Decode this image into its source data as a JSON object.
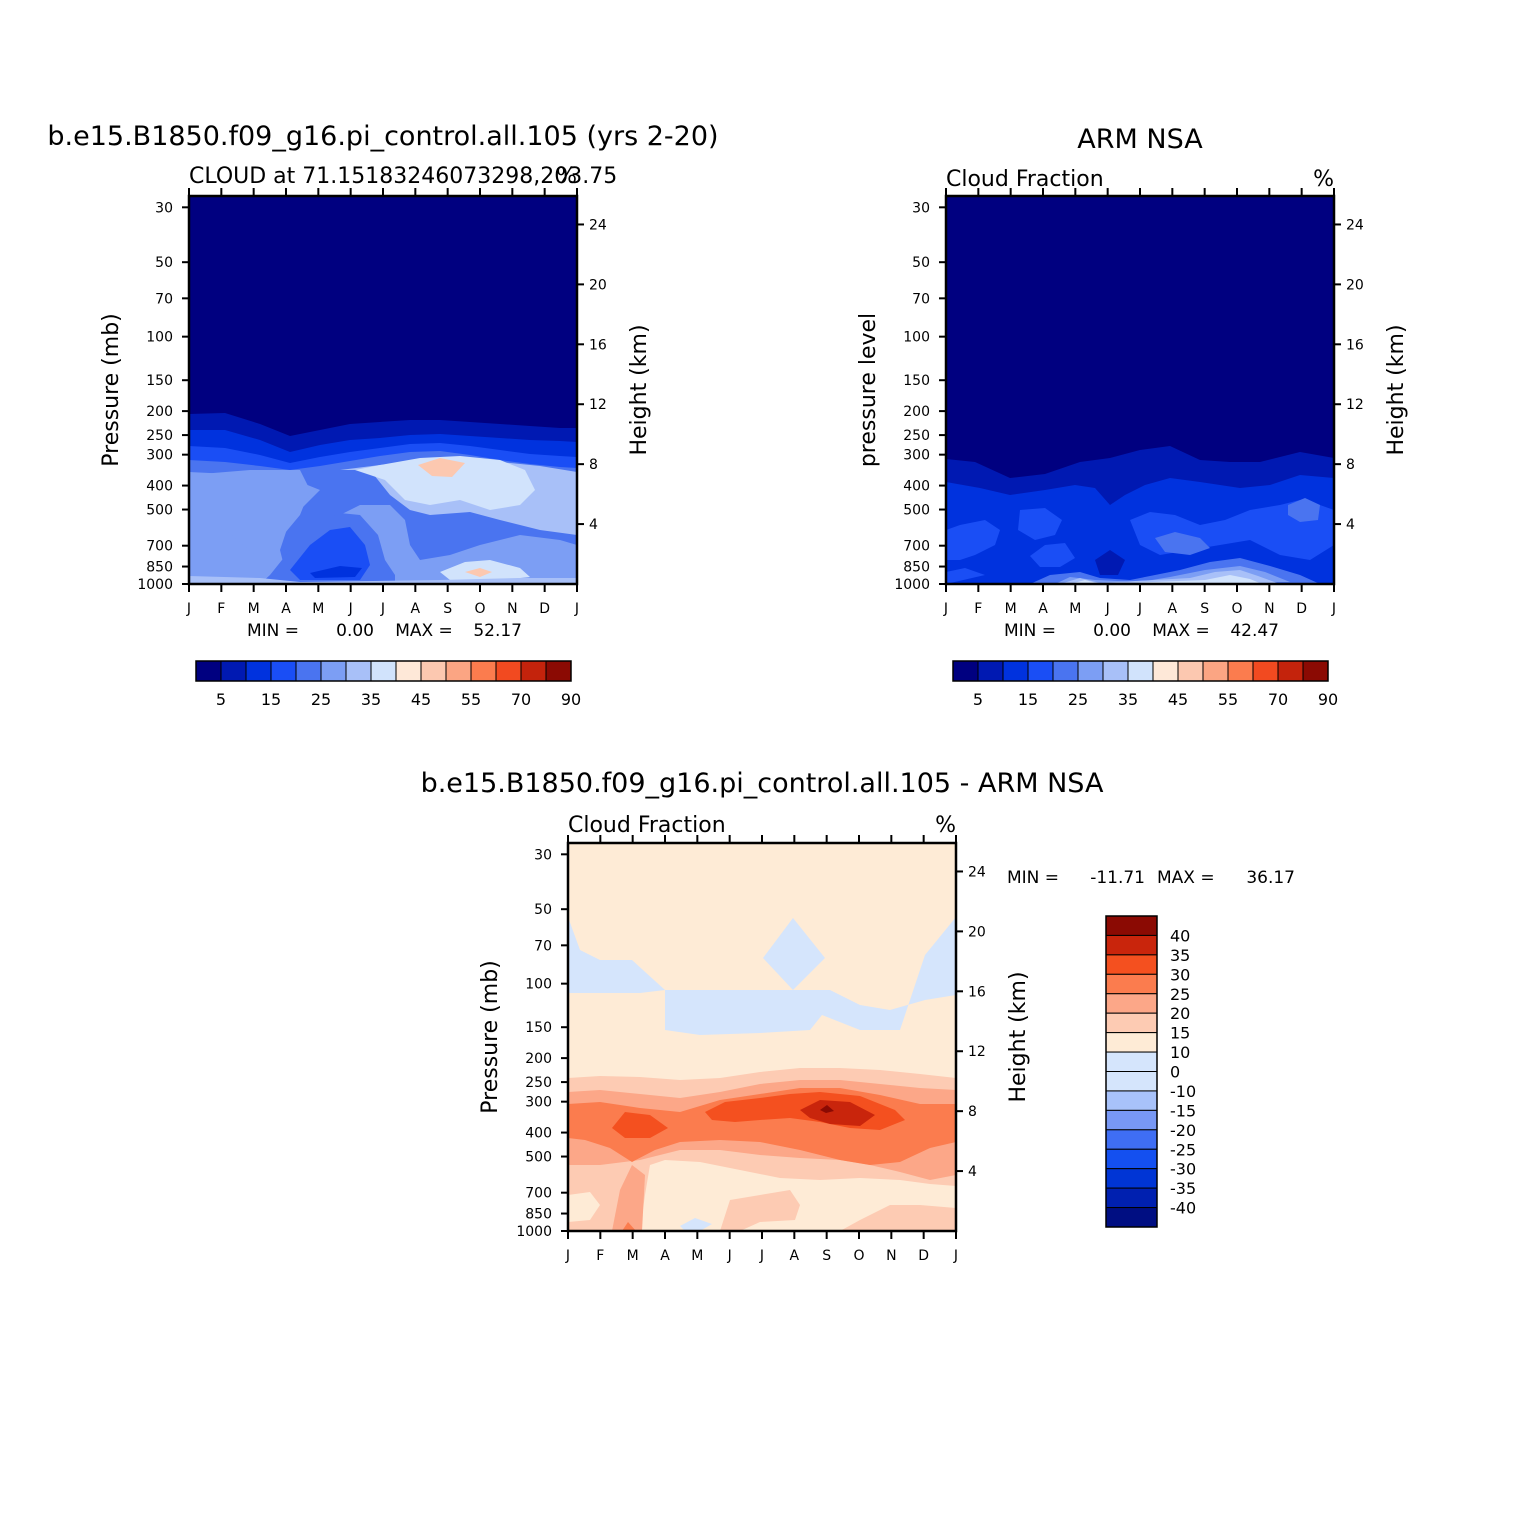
{
  "chart_data": [
    {
      "type": "heatmap",
      "title": "b.e15.B1850.f09_g16.pi_control.all.105 (yrs 2-20)",
      "left_string": "CLOUD at 71.15183246073298,203.75",
      "right_string": "%",
      "ylabel": "Pressure (mb)",
      "y2label": "Height (km)",
      "months": [
        "J",
        "F",
        "M",
        "A",
        "M",
        "J",
        "J",
        "A",
        "S",
        "O",
        "N",
        "D",
        "J"
      ],
      "pressure_ticks": [
        30,
        50,
        70,
        100,
        150,
        200,
        250,
        300,
        400,
        500,
        700,
        850,
        1000
      ],
      "height_ticks": [
        24,
        20,
        16,
        12,
        8,
        4
      ],
      "min_label": "MIN =",
      "min_value": "0.00",
      "max_label": "MAX =",
      "max_value": "52.17",
      "colorbar_labels": [
        "5",
        "15",
        "25",
        "35",
        "45",
        "55",
        "70",
        "90"
      ],
      "regions": [
        {
          "level": 0,
          "description": "stratosphere and upper troposphere above about 200-250 mb"
        },
        {
          "level": 1,
          "description": "thin layer near 200-250 mb"
        },
        {
          "level": 5,
          "description": "mid troposphere 300-1000 mb, broad cloud fraction 30-40%"
        },
        {
          "level": 4,
          "description": "spring mid-level minimum, April-August"
        },
        {
          "level": 7,
          "description": "late summer upper cloud near 300-400 mb, 35-45%"
        },
        {
          "level": 9,
          "description": "local maximum near 350 mb in September, near 45-55%"
        },
        {
          "level": 10,
          "description": "near-surface maximum in October, 52.17%"
        }
      ]
    },
    {
      "type": "heatmap",
      "title": "ARM NSA",
      "left_string": "Cloud Fraction",
      "right_string": "%",
      "ylabel": "pressure level",
      "y2label": "Height (km)",
      "months": [
        "J",
        "F",
        "M",
        "A",
        "M",
        "J",
        "J",
        "A",
        "S",
        "O",
        "N",
        "D",
        "J"
      ],
      "pressure_ticks": [
        30,
        50,
        70,
        100,
        150,
        200,
        250,
        300,
        400,
        500,
        700,
        850,
        1000
      ],
      "height_ticks": [
        24,
        20,
        16,
        12,
        8,
        4
      ],
      "min_label": "MIN =",
      "min_value": "0.00",
      "max_label": "MAX =",
      "max_value": "42.47",
      "colorbar_labels": [
        "5",
        "15",
        "25",
        "35",
        "45",
        "55",
        "70",
        "90"
      ],
      "regions": [
        {
          "level": 0,
          "description": "above about 300 mb"
        },
        {
          "level": 1,
          "description": "layer 300-450 mb"
        },
        {
          "level": 2,
          "description": "troposphere 400-1000 mb, 10-20%"
        },
        {
          "level": 3,
          "description": "mid-level 500-800 mb, 20-25%"
        },
        {
          "level": 6,
          "description": "near-surface layer in boreal summer/autumn, 30-40%"
        }
      ]
    },
    {
      "type": "heatmap",
      "title": "b.e15.B1850.f09_g16.pi_control.all.105 - ARM NSA",
      "left_string": "Cloud Fraction",
      "right_string": "%",
      "ylabel": "Pressure (mb)",
      "y2label": "Height (km)",
      "months": [
        "J",
        "F",
        "M",
        "A",
        "M",
        "J",
        "J",
        "A",
        "S",
        "O",
        "N",
        "D",
        "J"
      ],
      "pressure_ticks": [
        30,
        50,
        70,
        100,
        150,
        200,
        250,
        300,
        400,
        500,
        700,
        850,
        1000
      ],
      "height_ticks": [
        24,
        20,
        16,
        12,
        8,
        4
      ],
      "min_label": "MIN =",
      "min_value": "-11.71",
      "max_label": "MAX =",
      "max_value": "36.17",
      "colorbar_labels": [
        "40",
        "35",
        "30",
        "25",
        "20",
        "15",
        "10",
        "0",
        "-10",
        "-15",
        "-20",
        "-25",
        "-30",
        "-35",
        "-40"
      ],
      "regions": [
        {
          "level": 0,
          "description": "0 to 10 nearly everywhere aloft"
        },
        {
          "level": -1,
          "description": "0 to -10 band near 70-150 mb"
        },
        {
          "level": 2,
          "description": "positive bias 250-500 mb, 15-25"
        },
        {
          "level": 4,
          "description": "maximum positive bias near 350 mb, 25-35"
        },
        {
          "level": 5,
          "description": "peak bias in September, 36.17"
        },
        {
          "level": 1,
          "description": "lower troposphere 500-1000 mb, 10-15"
        }
      ]
    }
  ],
  "colors": {
    "seq": [
      "#000080",
      "#0019b2",
      "#0032de",
      "#1a4ef5",
      "#4a74f0",
      "#7c9ef4",
      "#a8c0f8",
      "#d1e3fc",
      "#fee8d8",
      "#fcc8b0",
      "#fba583",
      "#fb7c4e",
      "#f24a20",
      "#c4230c",
      "#8b0a03"
    ],
    "div": [
      "#000e82",
      "#0020b0",
      "#0035d5",
      "#1450f0",
      "#3f6ef4",
      "#7898f5",
      "#a8c2fa",
      "#d5e5fc",
      "#feebd6",
      "#fdcbb3",
      "#fca788",
      "#fb7c4e",
      "#f4501f",
      "#c9250c",
      "#8b0a03"
    ]
  }
}
